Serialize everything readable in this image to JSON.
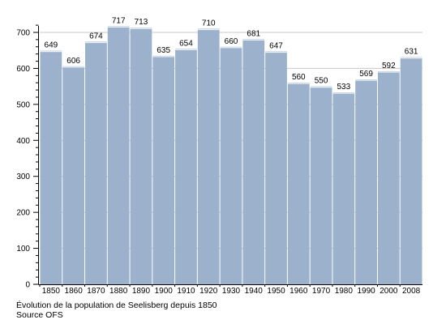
{
  "chart_data": {
    "type": "bar",
    "categories": [
      "1850",
      "1860",
      "1870",
      "1880",
      "1890",
      "1900",
      "1910",
      "1920",
      "1930",
      "1940",
      "1950",
      "1960",
      "1970",
      "1980",
      "1990",
      "2000",
      "2008"
    ],
    "values": [
      649,
      606,
      674,
      717,
      713,
      635,
      654,
      710,
      660,
      681,
      647,
      560,
      550,
      533,
      569,
      592,
      631
    ],
    "data_labels": [
      "649",
      "606",
      "674",
      "717",
      "713",
      "635",
      "654",
      "710",
      "660",
      "681",
      "647",
      "560",
      "550",
      "533",
      "569",
      "592",
      "631"
    ],
    "y_ticks": [
      0,
      100,
      200,
      300,
      400,
      500,
      600,
      700
    ],
    "ylim": [
      0,
      730
    ],
    "grid": true,
    "legend": "none",
    "colors": {
      "bar": "#9bb1cc",
      "bar_top": "#ffffff",
      "grid": "#c8c8c8",
      "axis": "#000000"
    }
  },
  "caption": {
    "title": "Évolution de la population de Seelisberg depuis 1850",
    "source": "Source OFS"
  }
}
